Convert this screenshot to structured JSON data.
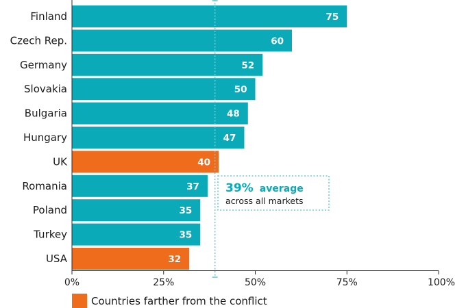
{
  "chart_data": {
    "type": "bar",
    "orientation": "horizontal",
    "categories": [
      "Finland",
      "Czech Rep.",
      "Germany",
      "Slovakia",
      "Bulgaria",
      "Hungary",
      "UK",
      "Romania",
      "Poland",
      "Turkey",
      "USA"
    ],
    "values": [
      75,
      60,
      52,
      50,
      48,
      47,
      40,
      37,
      35,
      35,
      32
    ],
    "highlight": [
      false,
      false,
      false,
      false,
      false,
      false,
      true,
      false,
      false,
      false,
      true
    ],
    "xlim": [
      0,
      100
    ],
    "xticks": [
      "0%",
      "25%",
      "50%",
      "75%",
      "100%"
    ],
    "xtick_values": [
      0,
      25,
      50,
      75,
      100
    ],
    "reference_line": {
      "value": 39,
      "value_label": "39%",
      "label_bold": "average",
      "label_rest": "across all markets"
    },
    "legend": [
      {
        "label": "Countries farther from the conflict",
        "color": "#ef6c1d"
      }
    ],
    "colors": {
      "default": "#0aaab8",
      "highlight": "#ef6c1d",
      "reference": "#6fc9d3"
    }
  }
}
